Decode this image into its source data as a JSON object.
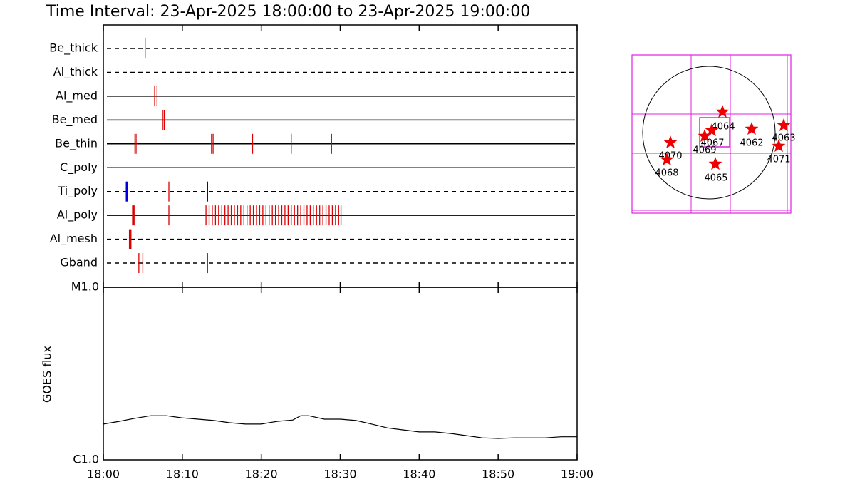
{
  "chart_data": {
    "type": "timeline",
    "title": "Time Interval: 23-Apr-2025 18:00:00 to 23-Apr-2025 19:00:00",
    "xlim": [
      0,
      60
    ],
    "xticks": [
      {
        "value": 0,
        "label": "18:00"
      },
      {
        "value": 10,
        "label": "18:10"
      },
      {
        "value": 20,
        "label": "18:20"
      },
      {
        "value": 30,
        "label": "18:30"
      },
      {
        "value": 40,
        "label": "18:40"
      },
      {
        "value": 50,
        "label": "18:50"
      },
      {
        "value": 60,
        "label": "19:00"
      }
    ],
    "mark_color": "#dd0000",
    "rows": [
      {
        "name": "Be_thick",
        "line": "dashed",
        "events": [
          {
            "t": 5.3
          }
        ]
      },
      {
        "name": "Al_thick",
        "line": "dashed",
        "events": []
      },
      {
        "name": "Al_med",
        "line": "solid",
        "events": [
          {
            "t": 6.5
          },
          {
            "t": 6.8
          }
        ]
      },
      {
        "name": "Be_med",
        "line": "solid",
        "events": [
          {
            "t": 7.5
          },
          {
            "t": 7.7
          }
        ]
      },
      {
        "name": "Be_thin",
        "line": "solid",
        "events": [
          {
            "t": 4.0
          },
          {
            "t": 4.15
          },
          {
            "t": 13.7
          },
          {
            "t": 13.9
          },
          {
            "t": 18.9
          },
          {
            "t": 23.8
          },
          {
            "t": 28.9
          }
        ]
      },
      {
        "name": "C_poly",
        "line": "solid",
        "events": []
      },
      {
        "name": "Ti_poly",
        "line": "dashed",
        "events": [
          {
            "t": 3.0,
            "color": "#0000dd",
            "bold": true
          },
          {
            "t": 8.3
          },
          {
            "t": 13.2,
            "color": "#000066"
          }
        ]
      },
      {
        "name": "Al_poly",
        "line": "solid",
        "events": [
          {
            "t": 3.8,
            "bold": true
          },
          {
            "t": 8.3
          },
          {
            "t": 13.0
          },
          {
            "t": 13.4
          },
          {
            "t": 13.8
          },
          {
            "t": 14.2
          },
          {
            "t": 14.6
          },
          {
            "t": 15.0
          },
          {
            "t": 15.4
          },
          {
            "t": 15.8
          },
          {
            "t": 16.2
          },
          {
            "t": 16.6
          },
          {
            "t": 17.0
          },
          {
            "t": 17.4
          },
          {
            "t": 17.8
          },
          {
            "t": 18.2
          },
          {
            "t": 18.6
          },
          {
            "t": 19.0
          },
          {
            "t": 19.4
          },
          {
            "t": 19.8
          },
          {
            "t": 20.2
          },
          {
            "t": 20.6
          },
          {
            "t": 21.0
          },
          {
            "t": 21.4
          },
          {
            "t": 21.8
          },
          {
            "t": 22.2
          },
          {
            "t": 22.6
          },
          {
            "t": 23.0
          },
          {
            "t": 23.4
          },
          {
            "t": 23.8
          },
          {
            "t": 24.2
          },
          {
            "t": 24.6
          },
          {
            "t": 25.0
          },
          {
            "t": 25.4
          },
          {
            "t": 25.8
          },
          {
            "t": 26.2
          },
          {
            "t": 26.6
          },
          {
            "t": 27.0
          },
          {
            "t": 27.4
          },
          {
            "t": 27.8
          },
          {
            "t": 28.2
          },
          {
            "t": 28.6
          },
          {
            "t": 29.0
          },
          {
            "t": 29.4
          },
          {
            "t": 29.8
          },
          {
            "t": 30.1
          }
        ]
      },
      {
        "name": "Al_mesh",
        "line": "dashed",
        "events": [
          {
            "t": 3.4,
            "bold": true
          }
        ]
      },
      {
        "name": "Gband",
        "line": "dashed",
        "events": [
          {
            "t": 4.5
          },
          {
            "t": 5.0
          },
          {
            "t": 13.2
          }
        ]
      }
    ],
    "goes": {
      "ylabel": "GOES flux",
      "log": true,
      "ylim": [
        1e-06,
        1e-05
      ],
      "yticks": [
        {
          "value": 1e-05,
          "label": "M1.0"
        },
        {
          "value": 1e-06,
          "label": "C1.0"
        }
      ],
      "color": "#000000",
      "x": [
        0,
        2,
        4,
        6,
        8,
        10,
        12,
        14,
        16,
        18,
        20,
        22,
        24,
        25,
        26,
        28,
        30,
        32,
        34,
        36,
        38,
        40,
        42,
        44,
        46,
        48,
        50,
        52,
        54,
        56,
        58,
        60
      ],
      "values": [
        1.61e-06,
        1.67e-06,
        1.74e-06,
        1.8e-06,
        1.8e-06,
        1.75e-06,
        1.72e-06,
        1.69e-06,
        1.64e-06,
        1.61e-06,
        1.61e-06,
        1.67e-06,
        1.7e-06,
        1.8e-06,
        1.8e-06,
        1.72e-06,
        1.72e-06,
        1.69e-06,
        1.61e-06,
        1.53e-06,
        1.49e-06,
        1.45e-06,
        1.45e-06,
        1.42e-06,
        1.38e-06,
        1.34e-06,
        1.33e-06,
        1.34e-06,
        1.34e-06,
        1.34e-06,
        1.36e-06,
        1.36e-06
      ]
    }
  },
  "map": {
    "regions": [
      {
        "label": "4064"
      },
      {
        "label": "4067"
      },
      {
        "label": "4069"
      },
      {
        "label": "4062"
      },
      {
        "label": "4063"
      },
      {
        "label": "4071"
      },
      {
        "label": "4070"
      },
      {
        "label": "4068"
      },
      {
        "label": "4065"
      }
    ]
  }
}
